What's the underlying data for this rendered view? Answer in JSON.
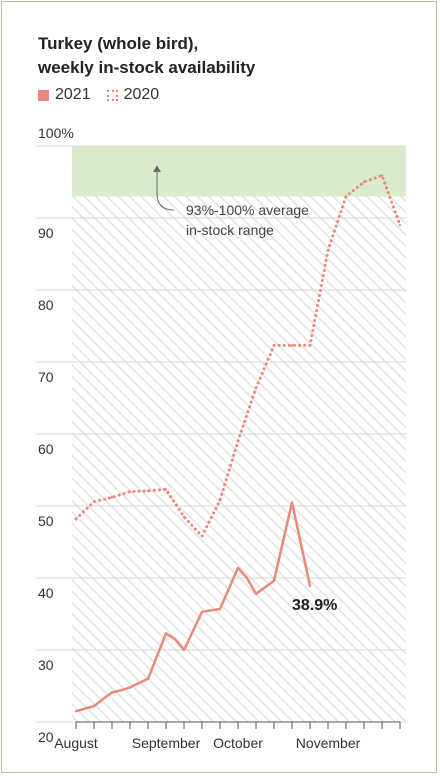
{
  "title_lines": [
    "Turkey (whole bird),",
    "weekly in-stock availability"
  ],
  "legend": [
    {
      "label": "2021",
      "style": "solid"
    },
    {
      "label": "2020",
      "style": "dotted"
    }
  ],
  "colors": {
    "series": "#e8897a",
    "band": "#d8ebcc",
    "hatch": "#e6e6e6",
    "grid": "#d9d9d9",
    "text": "#333333"
  },
  "annotation": {
    "text_lines": [
      "93%-100% average",
      "in-stock range"
    ]
  },
  "chart_data": {
    "type": "line",
    "title": "Turkey (whole bird), weekly in-stock availability",
    "xlabel": "",
    "ylabel": "",
    "ylim": [
      20,
      100
    ],
    "yticks": [
      20,
      30,
      40,
      50,
      60,
      70,
      80,
      90,
      100
    ],
    "ytick_labels": [
      "20",
      "30",
      "40",
      "50",
      "60",
      "70",
      "80",
      "90",
      "100%"
    ],
    "x_weeks": [
      0,
      18
    ],
    "month_ticks": [
      {
        "label": "August",
        "week": 0
      },
      {
        "label": "September",
        "week": 5
      },
      {
        "label": "October",
        "week": 9
      },
      {
        "label": "November",
        "week": 14
      }
    ],
    "week_ticks": [
      0,
      1,
      2,
      3,
      4,
      5,
      6,
      7,
      8,
      9,
      10,
      11,
      12,
      13,
      14,
      15,
      16,
      17,
      18
    ],
    "band": {
      "from": 93,
      "to": 100,
      "label": "93%-100% average in-stock range"
    },
    "series": [
      {
        "name": "2021",
        "style": "solid",
        "x": [
          0,
          1,
          1.5,
          2,
          2.5,
          3,
          4,
          5,
          5.5,
          6,
          7,
          7.5,
          8,
          9,
          9.5,
          10,
          11,
          12,
          13
        ],
        "values": [
          21.5,
          22.2,
          23.2,
          24.1,
          24.4,
          24.8,
          26.0,
          32.3,
          31.5,
          30.0,
          35.3,
          35.5,
          35.7,
          41.4,
          40.0,
          37.8,
          39.6,
          50.5,
          38.9
        ],
        "end_label": "38.9%"
      },
      {
        "name": "2020",
        "style": "dotted",
        "x": [
          0,
          1,
          2,
          3,
          4,
          5,
          6,
          7,
          8,
          9,
          10,
          11,
          12,
          13,
          14,
          15,
          16,
          17,
          18
        ],
        "values": [
          48.2,
          50.6,
          51.2,
          52.0,
          52.1,
          52.3,
          48.5,
          45.8,
          50.8,
          59.0,
          66.4,
          72.3,
          72.3,
          72.3,
          85.5,
          93.0,
          95.0,
          95.9,
          89.0
        ]
      }
    ],
    "grid": true,
    "legend_position": "top-left"
  }
}
